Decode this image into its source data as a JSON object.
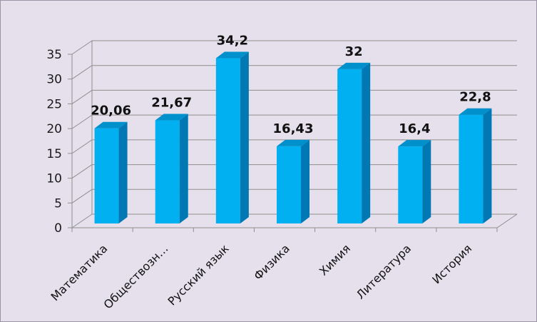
{
  "chart_data": {
    "type": "bar",
    "title": "",
    "xlabel": "",
    "ylabel": "",
    "categories": [
      "Математика",
      "Обществозн…",
      "Русский язык",
      "Физика",
      "Химия",
      "Литература",
      "История"
    ],
    "values": [
      20.06,
      21.67,
      34.2,
      16.43,
      32,
      16.4,
      22.8
    ],
    "data_labels": [
      "20,06",
      "21,67",
      "34,2",
      "16,43",
      "32",
      "16,4",
      "22,8"
    ],
    "ylim": [
      0,
      35
    ],
    "yticks": [
      "0",
      "5",
      "10",
      "15",
      "20",
      "25",
      "30",
      "35"
    ],
    "grid": true,
    "legend": "none",
    "colors": {
      "bar_front": "#00b0f0",
      "bar_side": "#0078b4",
      "bar_top": "#0090cc",
      "background": "#e6e0ec",
      "grid": "#8e8e8e"
    }
  }
}
